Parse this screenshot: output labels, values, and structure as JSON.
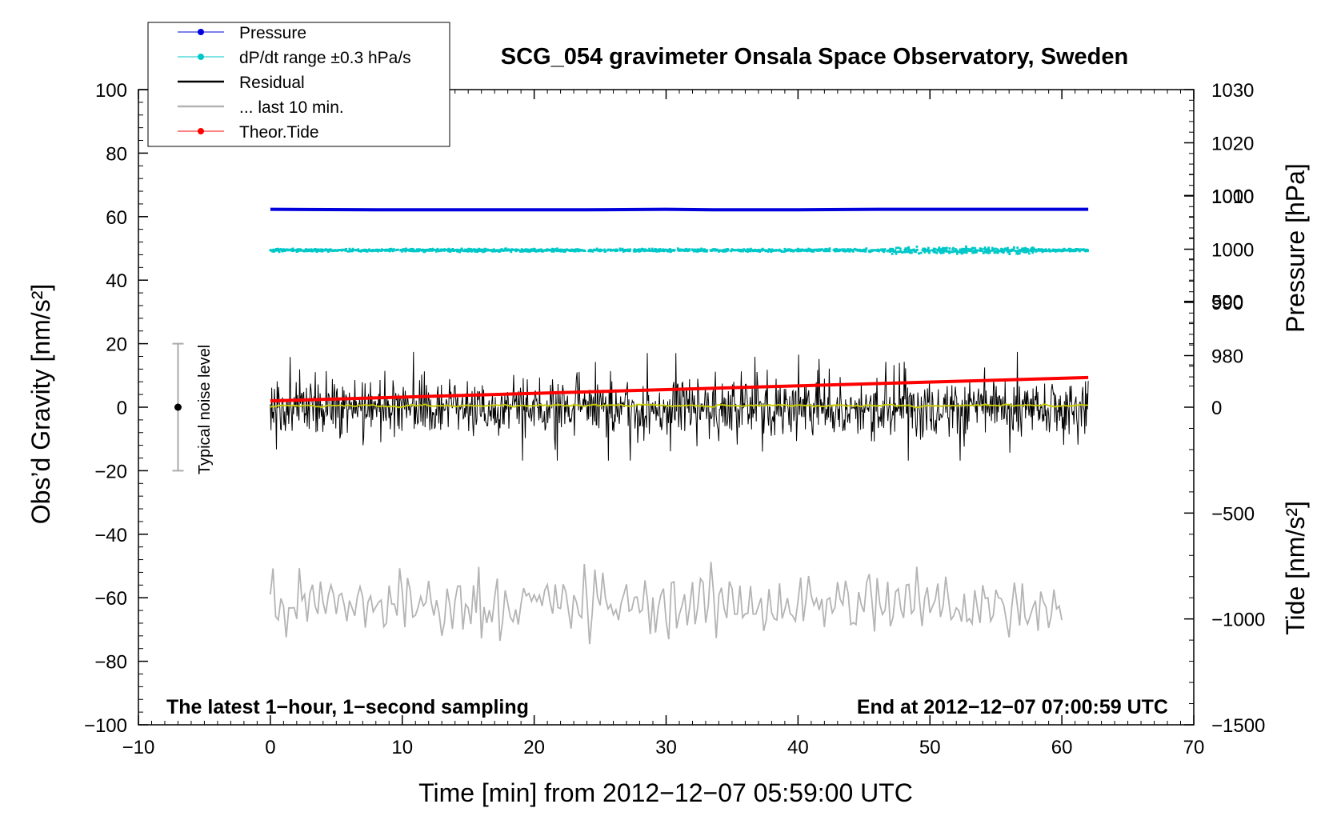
{
  "chart_data": {
    "type": "line",
    "title": "SCG_054 gravimeter Onsala Space Observatory, Sweden",
    "xlabel": "Time [min] from 2012−12−07 05:59:00 UTC",
    "ylabel_left": "Obs’d Gravity [nm/s²]",
    "ylabel_right_top": "Pressure [hPa]",
    "ylabel_right_bottom": "Tide [nm/s²]",
    "xlim": [
      -10,
      70
    ],
    "ylim_left": [
      -100,
      100
    ],
    "ylim_pressure": [
      970,
      1030
    ],
    "ylim_tide": [
      -1500,
      1500
    ],
    "x_ticks": [
      "−10",
      "0",
      "10",
      "20",
      "30",
      "40",
      "50",
      "60",
      "70"
    ],
    "y_ticks_left": [
      "100",
      "80",
      "60",
      "40",
      "20",
      "0",
      "−20",
      "−40",
      "−60",
      "−80",
      "−100"
    ],
    "y_ticks_pressure": [
      "1030",
      "1020",
      "1010",
      "1000",
      "990",
      "980"
    ],
    "y_ticks_tide": [
      "1000",
      "500",
      "0",
      "−500",
      "−1000",
      "−1500"
    ],
    "legend_position": "top-left",
    "grid": false,
    "annotation_left": "The latest 1−hour, 1−second sampling",
    "annotation_right": "End at 2012−12−07 07:00:59 UTC",
    "noise_bar_label": "Typical noise level",
    "noise_bar": {
      "x": -7,
      "center": 0,
      "low": -20,
      "high": 20
    },
    "colors": {
      "pressure": "#0000dd",
      "dpdt": "#00c8c8",
      "residual": "#000000",
      "last10": "#b4b4b4",
      "tide": "#ff0000",
      "smooth": "#cccc00"
    },
    "series": [
      {
        "name": "Pressure",
        "axis": "pressure",
        "color": "#0000dd",
        "x": [
          0,
          8,
          16,
          24,
          30,
          34,
          40,
          46,
          52,
          56,
          62
        ],
        "y": [
          1007.5,
          1007.4,
          1007.4,
          1007.4,
          1007.5,
          1007.4,
          1007.4,
          1007.5,
          1007.5,
          1007.5,
          1007.5
        ]
      },
      {
        "name": "dP/dt range ±0.3 hPa/s",
        "axis": "pressure",
        "color": "#00c8c8",
        "x_range": [
          0,
          62
        ],
        "center": 1000,
        "spread": 0.3
      },
      {
        "name": "Residual",
        "axis": "left",
        "color": "#000000",
        "x_range": [
          0,
          62
        ],
        "center": 0,
        "amplitude": 12
      },
      {
        "name": "... last 10 min.",
        "axis": "left",
        "color": "#b4b4b4",
        "x_range": [
          0,
          60
        ],
        "center": -62,
        "amplitude": 10
      },
      {
        "name": "Theor.Tide",
        "axis": "tide",
        "color": "#ff0000",
        "x": [
          0,
          62
        ],
        "y": [
          30,
          140
        ]
      }
    ]
  }
}
